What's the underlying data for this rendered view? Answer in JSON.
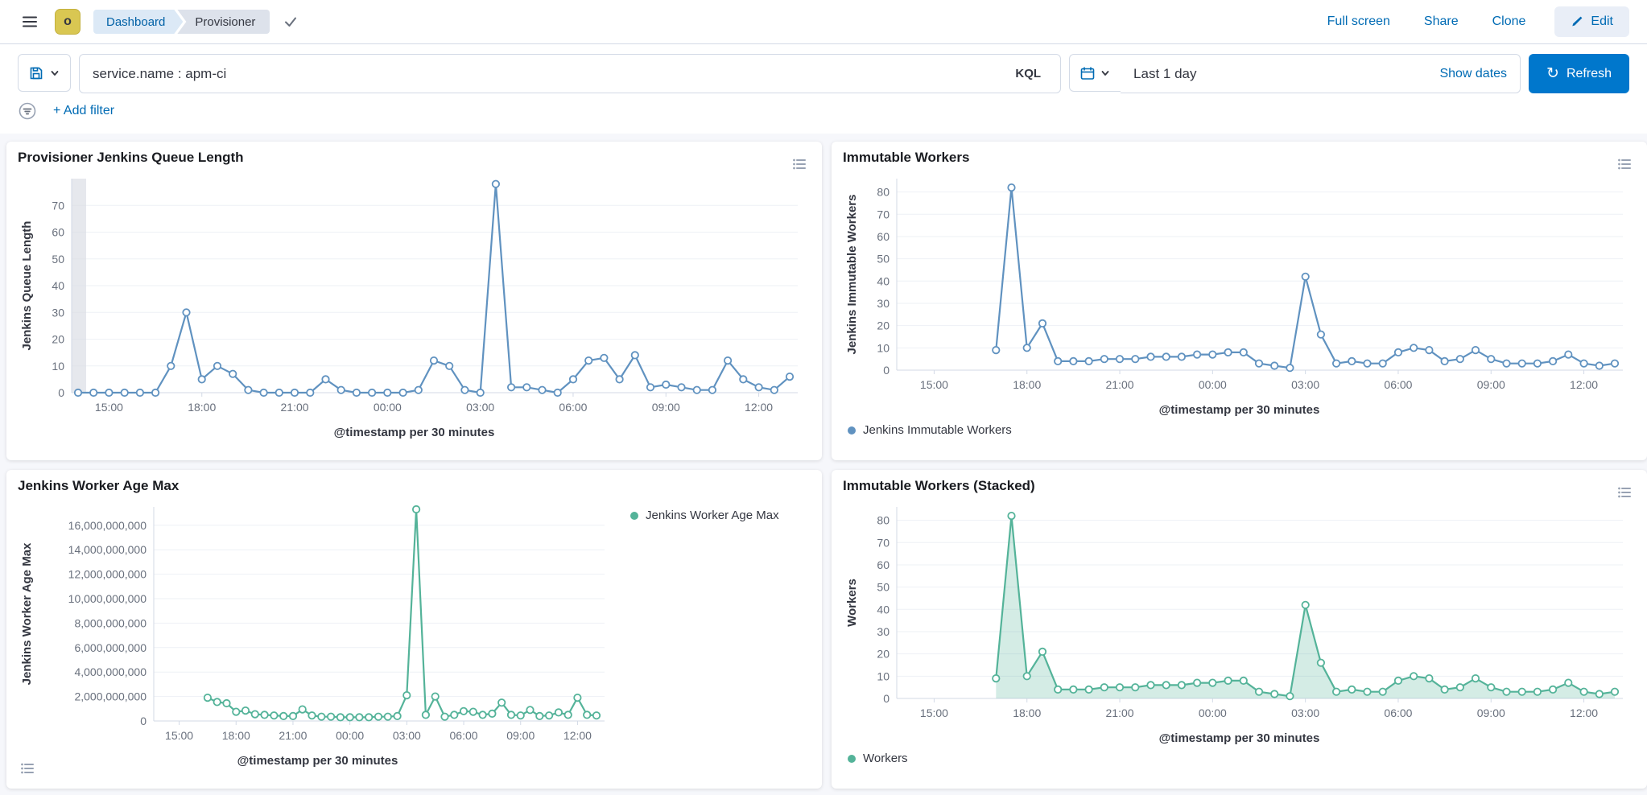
{
  "header": {
    "space_initial": "o",
    "breadcrumbs": [
      {
        "label": "Dashboard"
      },
      {
        "label": "Provisioner"
      }
    ],
    "actions": {
      "full_screen": "Full screen",
      "share": "Share",
      "clone": "Clone",
      "edit": "Edit"
    }
  },
  "query_bar": {
    "query": "service.name : apm-ci",
    "language_badge": "KQL",
    "time_range": "Last 1 day",
    "show_dates": "Show dates",
    "refresh": "Refresh",
    "add_filter": "+ Add filter"
  },
  "icons": {
    "refresh_glyph": "↻",
    "add_filter_plus": "+"
  },
  "colors": {
    "blue_series": "#6092C0",
    "green_series": "#54B399",
    "link_blue": "#006BB4",
    "primary_button": "#0077CC"
  },
  "chart_data": [
    {
      "type": "line",
      "title": "Provisioner Jenkins Queue Length",
      "ylabel": "Jenkins Queue Length",
      "xlabel": "@timestamp per 30 minutes",
      "color": "#6092C0",
      "area": false,
      "ylim": [
        0,
        80
      ],
      "yticks": [
        0,
        10,
        20,
        30,
        40,
        50,
        60,
        70
      ],
      "x_ticks": [
        "15:00",
        "18:00",
        "21:00",
        "00:00",
        "03:00",
        "06:00",
        "09:00",
        "12:00"
      ],
      "x": [
        "14:00",
        "14:30",
        "15:00",
        "15:30",
        "16:00",
        "16:30",
        "17:00",
        "17:30",
        "18:00",
        "18:30",
        "19:00",
        "19:30",
        "20:00",
        "20:30",
        "21:00",
        "21:30",
        "22:00",
        "22:30",
        "23:00",
        "23:30",
        "00:00",
        "00:30",
        "01:00",
        "01:30",
        "02:00",
        "02:30",
        "03:00",
        "03:30",
        "04:00",
        "04:30",
        "05:00",
        "05:30",
        "06:00",
        "06:30",
        "07:00",
        "07:30",
        "08:00",
        "08:30",
        "09:00",
        "09:30",
        "10:00",
        "10:30",
        "11:00",
        "11:30",
        "12:00",
        "12:30",
        "13:00"
      ],
      "values": [
        0,
        0,
        0,
        0,
        0,
        0,
        10,
        30,
        5,
        10,
        7,
        1,
        0,
        0,
        0,
        0,
        5,
        1,
        0,
        0,
        0,
        0,
        1,
        12,
        10,
        1,
        0,
        78,
        2,
        2,
        1,
        0,
        5,
        12,
        13,
        5,
        14,
        2,
        3,
        2,
        1,
        1,
        12,
        5,
        2,
        1,
        6
      ],
      "partial_band_index": 0,
      "legend": null
    },
    {
      "type": "line",
      "title": "Immutable Workers",
      "ylabel": "Jenkins Immutable Workers",
      "xlabel": "@timestamp per 30 minutes",
      "color": "#6092C0",
      "area": false,
      "ylim": [
        0,
        86
      ],
      "yticks": [
        0,
        10,
        20,
        30,
        40,
        50,
        60,
        70,
        80
      ],
      "x_ticks": [
        "15:00",
        "18:00",
        "21:00",
        "00:00",
        "03:00",
        "06:00",
        "09:00",
        "12:00"
      ],
      "x": [
        "14:00",
        "14:30",
        "15:00",
        "15:30",
        "16:00",
        "16:30",
        "17:00",
        "17:30",
        "18:00",
        "18:30",
        "19:00",
        "19:30",
        "20:00",
        "20:30",
        "21:00",
        "21:30",
        "22:00",
        "22:30",
        "23:00",
        "23:30",
        "00:00",
        "00:30",
        "01:00",
        "01:30",
        "02:00",
        "02:30",
        "03:00",
        "03:30",
        "04:00",
        "04:30",
        "05:00",
        "05:30",
        "06:00",
        "06:30",
        "07:00",
        "07:30",
        "08:00",
        "08:30",
        "09:00",
        "09:30",
        "10:00",
        "10:30",
        "11:00",
        "11:30",
        "12:00",
        "12:30",
        "13:00"
      ],
      "values": [
        null,
        null,
        null,
        null,
        null,
        null,
        9,
        82,
        10,
        21,
        4,
        4,
        4,
        5,
        5,
        5,
        6,
        6,
        6,
        7,
        7,
        8,
        8,
        3,
        2,
        1,
        42,
        16,
        3,
        4,
        3,
        3,
        8,
        10,
        9,
        4,
        5,
        9,
        5,
        3,
        3,
        3,
        4,
        7,
        3,
        2,
        3
      ],
      "partial_band_index": null,
      "legend": {
        "label": "Jenkins Immutable Workers",
        "position": "bottom"
      }
    },
    {
      "type": "line",
      "title": "Jenkins Worker Age Max",
      "ylabel": "Jenkins Worker Age Max",
      "xlabel": "@timestamp per 30 minutes",
      "color": "#54B399",
      "area": false,
      "ylim": [
        0,
        17500000000
      ],
      "yticks": [
        0,
        2000000000,
        4000000000,
        6000000000,
        8000000000,
        10000000000,
        12000000000,
        14000000000,
        16000000000
      ],
      "x_ticks": [
        "15:00",
        "18:00",
        "21:00",
        "00:00",
        "03:00",
        "06:00",
        "09:00",
        "12:00"
      ],
      "x": [
        "14:00",
        "14:30",
        "15:00",
        "15:30",
        "16:00",
        "16:30",
        "17:00",
        "17:30",
        "18:00",
        "18:30",
        "19:00",
        "19:30",
        "20:00",
        "20:30",
        "21:00",
        "21:30",
        "22:00",
        "22:30",
        "23:00",
        "23:30",
        "00:00",
        "00:30",
        "01:00",
        "01:30",
        "02:00",
        "02:30",
        "03:00",
        "03:30",
        "04:00",
        "04:30",
        "05:00",
        "05:30",
        "06:00",
        "06:30",
        "07:00",
        "07:30",
        "08:00",
        "08:30",
        "09:00",
        "09:30",
        "10:00",
        "10:30",
        "11:00",
        "11:30",
        "12:00",
        "12:30",
        "13:00"
      ],
      "values": [
        null,
        null,
        null,
        null,
        null,
        1900000000,
        1550000000,
        1450000000,
        750000000,
        850000000,
        550000000,
        500000000,
        450000000,
        400000000,
        400000000,
        950000000,
        450000000,
        350000000,
        350000000,
        300000000,
        300000000,
        300000000,
        300000000,
        350000000,
        350000000,
        400000000,
        2100000000,
        17300000000,
        500000000,
        2000000000,
        350000000,
        500000000,
        800000000,
        750000000,
        500000000,
        600000000,
        1500000000,
        500000000,
        450000000,
        900000000,
        400000000,
        450000000,
        700000000,
        500000000,
        1900000000,
        500000000,
        450000000
      ],
      "partial_band_index": null,
      "legend": {
        "label": "Jenkins Worker Age Max",
        "position": "right"
      }
    },
    {
      "type": "area",
      "title": "Immutable Workers (Stacked)",
      "ylabel": "Workers",
      "xlabel": "@timestamp per 30 minutes",
      "color": "#54B399",
      "area": true,
      "ylim": [
        0,
        86
      ],
      "yticks": [
        0,
        10,
        20,
        30,
        40,
        50,
        60,
        70,
        80
      ],
      "x_ticks": [
        "15:00",
        "18:00",
        "21:00",
        "00:00",
        "03:00",
        "06:00",
        "09:00",
        "12:00"
      ],
      "x": [
        "14:00",
        "14:30",
        "15:00",
        "15:30",
        "16:00",
        "16:30",
        "17:00",
        "17:30",
        "18:00",
        "18:30",
        "19:00",
        "19:30",
        "20:00",
        "20:30",
        "21:00",
        "21:30",
        "22:00",
        "22:30",
        "23:00",
        "23:30",
        "00:00",
        "00:30",
        "01:00",
        "01:30",
        "02:00",
        "02:30",
        "03:00",
        "03:30",
        "04:00",
        "04:30",
        "05:00",
        "05:30",
        "06:00",
        "06:30",
        "07:00",
        "07:30",
        "08:00",
        "08:30",
        "09:00",
        "09:30",
        "10:00",
        "10:30",
        "11:00",
        "11:30",
        "12:00",
        "12:30",
        "13:00"
      ],
      "values": [
        null,
        null,
        null,
        null,
        null,
        null,
        9,
        82,
        10,
        21,
        4,
        4,
        4,
        5,
        5,
        5,
        6,
        6,
        6,
        7,
        7,
        8,
        8,
        3,
        2,
        1,
        42,
        16,
        3,
        4,
        3,
        3,
        8,
        10,
        9,
        4,
        5,
        9,
        5,
        3,
        3,
        3,
        4,
        7,
        3,
        2,
        3
      ],
      "partial_band_index": null,
      "legend": {
        "label": "Workers",
        "position": "bottom"
      }
    }
  ]
}
